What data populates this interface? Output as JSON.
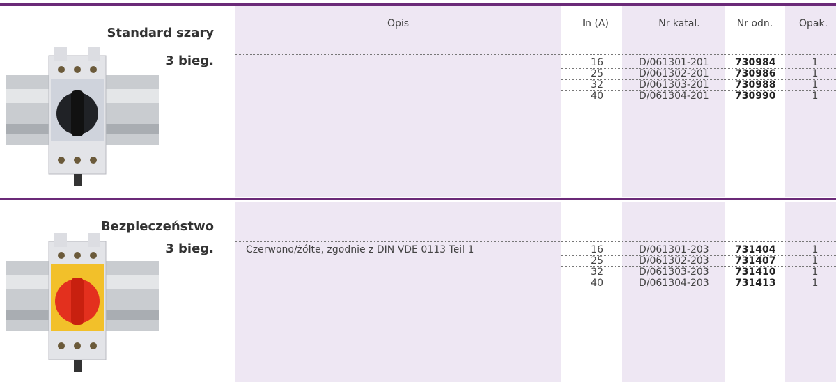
{
  "header": {
    "columns": [
      "Opis",
      "In (A)",
      "Nr katal.",
      "Nr odn.",
      "Opak."
    ]
  },
  "sections": [
    {
      "name": "Standard szary",
      "positions": "3 bieg.",
      "rows": [
        [
          "16",
          "D/061301-201",
          "730984",
          "1"
        ],
        [
          "25",
          "D/061302-201",
          "730986",
          "1"
        ],
        [
          "32",
          "D/061303-201",
          "730988",
          "1"
        ],
        [
          "40",
          "D/061304-201",
          "730990",
          "1"
        ]
      ]
    },
    {
      "name": "Bezpieczeństwo",
      "positions": "3 bieg.",
      "description": "Czerwono/żółte, zgodnie z DIN VDE 0113 Teil 1",
      "rows": [
        [
          "16",
          "D/061301-203",
          "731404",
          "1"
        ],
        [
          "25",
          "D/061302-203",
          "731407",
          "1"
        ],
        [
          "32",
          "D/061303-203",
          "731410",
          "1"
        ],
        [
          "40",
          "D/061304-203",
          "731413",
          "1"
        ]
      ]
    }
  ]
}
